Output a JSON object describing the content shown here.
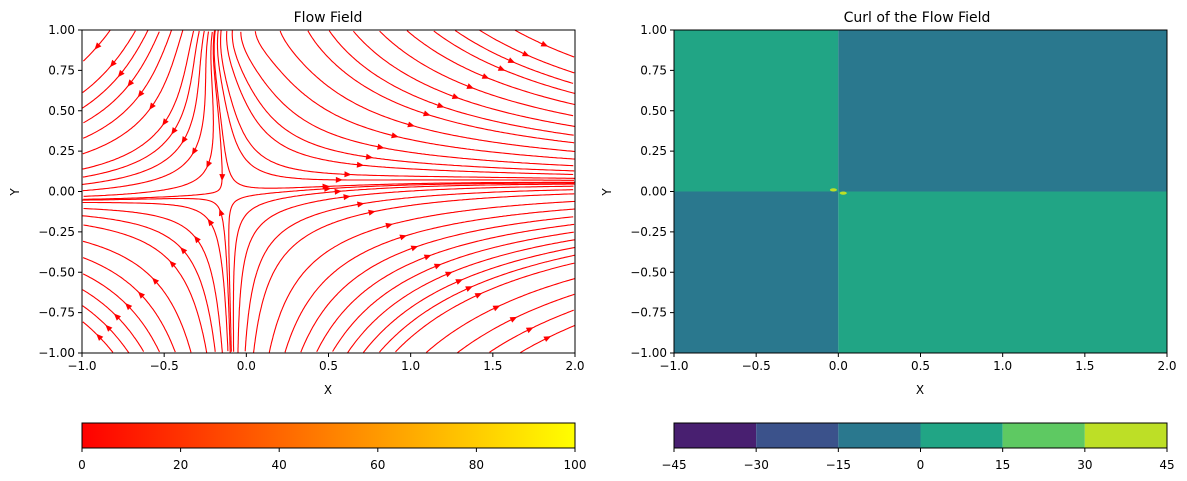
{
  "chart_data": [
    {
      "type": "streamplot",
      "title": "Flow Field",
      "xlabel": "X",
      "ylabel": "Y",
      "xlim": [
        -1.0,
        2.0
      ],
      "ylim": [
        -1.0,
        1.0
      ],
      "x_ticks": [
        "−1.0",
        "−0.5",
        "0.0",
        "0.5",
        "1.0",
        "1.5",
        "2.0"
      ],
      "x_tick_values": [
        -1.0,
        -0.5,
        0.0,
        0.5,
        1.0,
        1.5,
        2.0
      ],
      "y_ticks": [
        "−1.00",
        "−0.75",
        "−0.50",
        "−0.25",
        "0.00",
        "0.25",
        "0.50",
        "0.75",
        "1.00"
      ],
      "y_tick_values": [
        -1.0,
        -0.75,
        -0.5,
        -0.25,
        0.0,
        0.25,
        0.5,
        0.75,
        1.0
      ],
      "line_color": "#ff0000",
      "grid": false,
      "colorbar": {
        "orientation": "horizontal",
        "range": [
          0,
          100
        ],
        "colormap": "autumn",
        "colors": [
          "#ff0000",
          "#ffff00"
        ],
        "ticks": [
          "0",
          "20",
          "40",
          "60",
          "80",
          "100"
        ],
        "tick_values": [
          0,
          20,
          40,
          60,
          80,
          100
        ]
      }
    },
    {
      "type": "heatmap",
      "title": "Curl of the Flow Field",
      "xlabel": "X",
      "ylabel": "Y",
      "xlim": [
        -1.0,
        2.0
      ],
      "ylim": [
        -1.0,
        1.0
      ],
      "x_ticks": [
        "−1.0",
        "−0.5",
        "0.0",
        "0.5",
        "1.0",
        "1.5",
        "2.0"
      ],
      "x_tick_values": [
        -1.0,
        -0.5,
        0.0,
        0.5,
        1.0,
        1.5,
        2.0
      ],
      "y_ticks": [
        "−1.00",
        "−0.75",
        "−0.50",
        "−0.25",
        "0.00",
        "0.25",
        "0.50",
        "0.75",
        "1.00"
      ],
      "y_tick_values": [
        -1.0,
        -0.75,
        -0.5,
        -0.25,
        0.0,
        0.25,
        0.5,
        0.75,
        1.0
      ],
      "regions": [
        {
          "x": [
            -1.0,
            0.0
          ],
          "y": [
            0.0,
            1.0
          ],
          "value": 2,
          "color": "#21a585"
        },
        {
          "x": [
            0.0,
            2.0
          ],
          "y": [
            0.0,
            1.0
          ],
          "value": -2,
          "color": "#2a788e"
        },
        {
          "x": [
            -1.0,
            0.0
          ],
          "y": [
            -1.0,
            0.0
          ],
          "value": -2,
          "color": "#2a788e"
        },
        {
          "x": [
            0.0,
            2.0
          ],
          "y": [
            -1.0,
            0.0
          ],
          "value": 2,
          "color": "#21a585"
        }
      ],
      "spikes": [
        {
          "x": -0.03,
          "y": 0.01,
          "color": "#bddf26"
        },
        {
          "x": 0.03,
          "y": -0.01,
          "color": "#bddf26"
        }
      ],
      "colorbar": {
        "orientation": "horizontal",
        "range": [
          -45,
          45
        ],
        "colormap": "viridis",
        "levels": [
          -45,
          -30,
          -15,
          0,
          15,
          30,
          45
        ],
        "level_colors": [
          "#481f70",
          "#3b528b",
          "#2a788e",
          "#21a585",
          "#5ec962",
          "#bddf26"
        ],
        "ticks": [
          "−45",
          "−30",
          "−15",
          "0",
          "15",
          "30",
          "45"
        ],
        "tick_values": [
          -45,
          -30,
          -15,
          0,
          15,
          30,
          45
        ]
      }
    }
  ]
}
